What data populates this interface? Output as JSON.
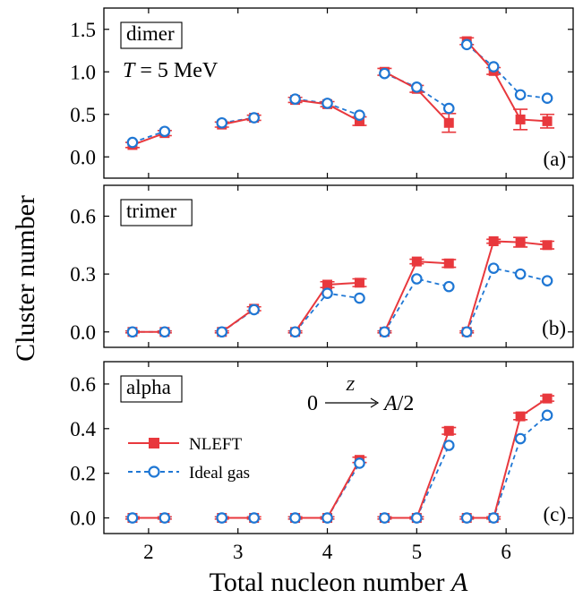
{
  "figure": {
    "ylabel": "Cluster number",
    "xlabel_text": "Total nucleon number ",
    "xlabel_var": "A",
    "xticks": [
      "2",
      "3",
      "4",
      "5",
      "6"
    ]
  },
  "colors": {
    "nleft": "#e8383d",
    "ideal": "#1f77d4"
  },
  "legend": {
    "nleft": "NLEFT",
    "ideal": "Ideal gas"
  },
  "chart_data": [
    {
      "type": "line",
      "panel": "(a)",
      "label": "dimer",
      "annotation": "T = 5 MeV",
      "ylim": [
        -0.25,
        1.75
      ],
      "yticks": [
        "0.0",
        "0.5",
        "1.0",
        "1.5"
      ],
      "ytick_values": [
        0.0,
        0.5,
        1.0,
        1.5
      ],
      "groups": [
        {
          "A": 2,
          "x": [
            1.82,
            2.18
          ],
          "nleft": [
            0.14,
            0.28
          ],
          "nleft_err": [
            0.03,
            0.03
          ],
          "ideal": [
            0.17,
            0.3
          ]
        },
        {
          "A": 3,
          "x": [
            2.82,
            3.18
          ],
          "nleft": [
            0.38,
            0.46
          ],
          "nleft_err": [
            0.03,
            0.03
          ],
          "ideal": [
            0.4,
            0.46
          ]
        },
        {
          "A": 4,
          "x": [
            3.64,
            4.0,
            4.36
          ],
          "nleft": [
            0.67,
            0.62,
            0.42
          ],
          "nleft_err": [
            0.03,
            0.03,
            0.05
          ],
          "ideal": [
            0.68,
            0.63,
            0.49
          ]
        },
        {
          "A": 5,
          "x": [
            4.64,
            5.0,
            5.36
          ],
          "nleft": [
            1.0,
            0.8,
            0.4
          ],
          "nleft_err": [
            0.04,
            0.04,
            0.11
          ],
          "ideal": [
            0.98,
            0.82,
            0.57
          ]
        },
        {
          "A": 6,
          "x": [
            5.56,
            5.86,
            6.16,
            6.46
          ],
          "nleft": [
            1.36,
            1.01,
            0.44,
            0.42
          ],
          "nleft_err": [
            0.04,
            0.04,
            0.12,
            0.08
          ],
          "ideal": [
            1.32,
            1.06,
            0.73,
            0.69
          ]
        }
      ]
    },
    {
      "type": "line",
      "panel": "(b)",
      "label": "trimer",
      "annotation": "",
      "ylim": [
        -0.08,
        0.76
      ],
      "yticks": [
        "0.0",
        "0.3",
        "0.6"
      ],
      "ytick_values": [
        0.0,
        0.3,
        0.6
      ],
      "groups": [
        {
          "A": 2,
          "x": [
            1.82,
            2.18
          ],
          "nleft": [
            0.0,
            0.0
          ],
          "nleft_err": [
            0.005,
            0.005
          ],
          "ideal": [
            0.0,
            0.0
          ]
        },
        {
          "A": 3,
          "x": [
            2.82,
            3.18
          ],
          "nleft": [
            0.0,
            0.12
          ],
          "nleft_err": [
            0.005,
            0.01
          ],
          "ideal": [
            0.0,
            0.115
          ]
        },
        {
          "A": 4,
          "x": [
            3.64,
            4.0,
            4.36
          ],
          "nleft": [
            0.0,
            0.245,
            0.255
          ],
          "nleft_err": [
            0.005,
            0.015,
            0.02
          ],
          "ideal": [
            0.0,
            0.2,
            0.175
          ]
        },
        {
          "A": 5,
          "x": [
            4.64,
            5.0,
            5.36
          ],
          "nleft": [
            0.0,
            0.365,
            0.355
          ],
          "nleft_err": [
            0.005,
            0.012,
            0.02
          ],
          "ideal": [
            0.0,
            0.275,
            0.235
          ]
        },
        {
          "A": 6,
          "x": [
            5.56,
            5.86,
            6.16,
            6.46
          ],
          "nleft": [
            0.0,
            0.47,
            0.465,
            0.45
          ],
          "nleft_err": [
            0.005,
            0.01,
            0.025,
            0.02
          ],
          "ideal": [
            0.0,
            0.33,
            0.3,
            0.265
          ]
        }
      ]
    },
    {
      "type": "line",
      "panel": "(c)",
      "label": "alpha",
      "annotation": "",
      "ylim": [
        -0.07,
        0.7
      ],
      "yticks": [
        "0.0",
        "0.2",
        "0.4",
        "0.6"
      ],
      "ytick_values": [
        0.0,
        0.2,
        0.4,
        0.6
      ],
      "groups": [
        {
          "A": 2,
          "x": [
            1.82,
            2.18
          ],
          "nleft": [
            0.0,
            0.0
          ],
          "nleft_err": [
            0.005,
            0.005
          ],
          "ideal": [
            0.0,
            0.0
          ]
        },
        {
          "A": 3,
          "x": [
            2.82,
            3.18
          ],
          "nleft": [
            0.0,
            0.0
          ],
          "nleft_err": [
            0.005,
            0.005
          ],
          "ideal": [
            0.0,
            0.0
          ]
        },
        {
          "A": 4,
          "x": [
            3.64,
            4.0,
            4.36
          ],
          "nleft": [
            0.0,
            0.0,
            0.26
          ],
          "nleft_err": [
            0.005,
            0.005,
            0.012
          ],
          "ideal": [
            0.0,
            0.0,
            0.245
          ]
        },
        {
          "A": 5,
          "x": [
            4.64,
            5.0,
            5.36
          ],
          "nleft": [
            0.0,
            0.0,
            0.39
          ],
          "nleft_err": [
            0.005,
            0.005,
            0.015
          ],
          "ideal": [
            0.0,
            0.0,
            0.325
          ]
        },
        {
          "A": 6,
          "x": [
            5.56,
            5.86,
            6.16,
            6.46
          ],
          "nleft": [
            0.0,
            0.0,
            0.455,
            0.535
          ],
          "nleft_err": [
            0.005,
            0.005,
            0.015,
            0.012
          ],
          "ideal": [
            0.0,
            0.0,
            0.355,
            0.46
          ]
        }
      ]
    }
  ],
  "annotations": {
    "panel_c_formula_left": "0",
    "panel_c_formula_over": "Z",
    "panel_c_formula_right": "A/2"
  }
}
